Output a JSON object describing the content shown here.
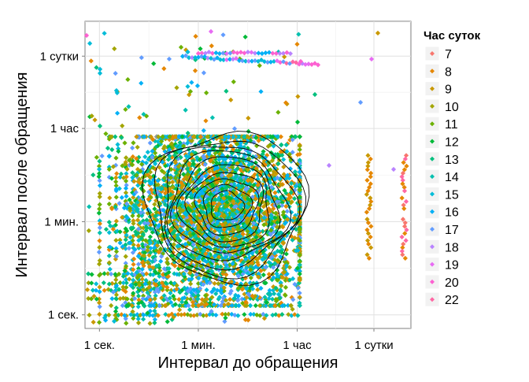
{
  "chart_data": {
    "type": "scatter",
    "xlabel": "Интервал до обращения",
    "ylabel": "Интервал после обращения",
    "scale": "log10",
    "unit": "seconds",
    "xlim": [
      0.55,
      400000
    ],
    "ylim": [
      0.55,
      400000
    ],
    "grid": true,
    "x_ticks": [
      {
        "value": 1,
        "label": "1 сек."
      },
      {
        "value": 60,
        "label": "1 мин."
      },
      {
        "value": 3600,
        "label": "1 час"
      },
      {
        "value": 86400,
        "label": "1 сутки"
      }
    ],
    "y_ticks": [
      {
        "value": 1,
        "label": "1 сек."
      },
      {
        "value": 60,
        "label": "1 мин."
      },
      {
        "value": 3600,
        "label": "1 час"
      },
      {
        "value": 86400,
        "label": "1 сутки"
      }
    ],
    "legend": {
      "title": "Час суток",
      "placement": "right",
      "entries": [
        {
          "name": "7",
          "color": "#F8766D"
        },
        {
          "name": "8",
          "color": "#E58700"
        },
        {
          "name": "9",
          "color": "#C99800"
        },
        {
          "name": "10",
          "color": "#A3A500"
        },
        {
          "name": "11",
          "color": "#6BB100"
        },
        {
          "name": "12",
          "color": "#00BA38"
        },
        {
          "name": "13",
          "color": "#00BF7D"
        },
        {
          "name": "14",
          "color": "#00C0AF"
        },
        {
          "name": "15",
          "color": "#00BCD8"
        },
        {
          "name": "16",
          "color": "#00B0F6"
        },
        {
          "name": "17",
          "color": "#619CFF"
        },
        {
          "name": "18",
          "color": "#B983FF"
        },
        {
          "name": "19",
          "color": "#E76BF3"
        },
        {
          "name": "20",
          "color": "#FD61D1"
        },
        {
          "name": "22",
          "color": "#FF67A4"
        }
      ]
    },
    "clusters": [
      {
        "x_range": [
          1.5,
          4000
        ],
        "y_range": [
          1.5,
          2500
        ],
        "center": [
          140,
          90
        ]
      },
      {
        "x_range": [
          60,
          3000
        ],
        "y_range": [
          90000,
          110000
        ],
        "center": [
          600,
          100000
        ]
      },
      {
        "x_range": [
          3000,
          30000
        ],
        "y_range": [
          78000,
          95000
        ],
        "center": [
          9000,
          85000
        ]
      },
      {
        "x_range": [
          40000,
          150000
        ],
        "y_range": [
          12,
          1100
        ],
        "center": [
          70000,
          100
        ]
      },
      {
        "x_range": [
          1,
          4000
        ],
        "y_range": [
          0.7,
          1.3
        ],
        "center": [
          100,
          1
        ]
      }
    ]
  }
}
